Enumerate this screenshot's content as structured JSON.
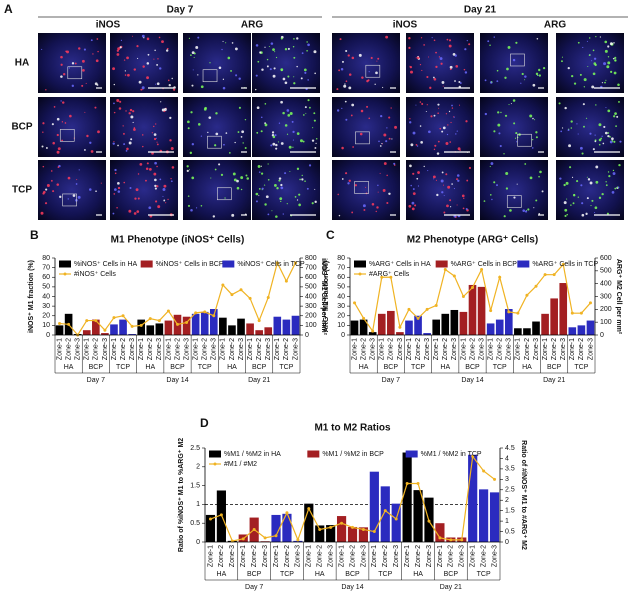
{
  "panel_a": {
    "label": "A",
    "days": [
      "Day 7",
      "Day 21"
    ],
    "stains": [
      "iNOS",
      "ARG",
      "iNOS",
      "ARG"
    ],
    "rows": [
      "HA",
      "BCP",
      "TCP"
    ]
  },
  "chart_data": [
    {
      "type": "bar",
      "panel": "B",
      "title": "M1 Phenotype (iNOS⁺ Cells)",
      "y_label": "iNOS⁺ M1 fraction (%)",
      "y2_label": "iNOS⁺ M1 Cell per mm²",
      "categories": [
        "Zone-1",
        "Zone-2",
        "Zone-3",
        "Zone-1",
        "Zone-2",
        "Zone-3",
        "Zone-1",
        "Zone-2",
        "Zone-3",
        "Zone-1",
        "Zone-2",
        "Zone-3",
        "Zone-1",
        "Zone-2",
        "Zone-3",
        "Zone-1",
        "Zone-2",
        "Zone-3",
        "Zone-1",
        "Zone-2",
        "Zone-3",
        "Zone-1",
        "Zone-2",
        "Zone-3",
        "Zone-1",
        "Zone-2",
        "Zone-3"
      ],
      "groups": [
        "HA",
        "BCP",
        "TCP",
        "HA",
        "BCP",
        "TCP",
        "HA",
        "BCP",
        "TCP"
      ],
      "days": [
        "Day 7",
        "Day 14",
        "Day 21"
      ],
      "series": [
        {
          "name": "%iNOS⁺ Cells in HA",
          "color": "#000000",
          "values": [
            10,
            22,
            1,
            null,
            null,
            null,
            null,
            null,
            null,
            16,
            10,
            12,
            null,
            null,
            null,
            null,
            null,
            null,
            18,
            10,
            17,
            null,
            null,
            null,
            null,
            null,
            null
          ]
        },
        {
          "name": "%iNOS⁺ Cells in BCP",
          "color": "#a31f22",
          "values": [
            null,
            null,
            null,
            5,
            16,
            2,
            null,
            null,
            null,
            null,
            null,
            null,
            15,
            21,
            19,
            null,
            null,
            null,
            null,
            null,
            null,
            12,
            5,
            8,
            null,
            null,
            null
          ]
        },
        {
          "name": "%iNOS⁺ Cells in TCP",
          "color": "#2b2bbf",
          "values": [
            null,
            null,
            null,
            null,
            null,
            null,
            11,
            16,
            1,
            null,
            null,
            null,
            null,
            null,
            null,
            22,
            24,
            27,
            null,
            null,
            null,
            null,
            null,
            null,
            19,
            16,
            20
          ]
        },
        {
          "name": "#iNOS⁺ Cells",
          "color": "#f0b323",
          "axis": "y2",
          "values": [
            120,
            110,
            0,
            150,
            150,
            50,
            180,
            200,
            90,
            100,
            170,
            150,
            250,
            110,
            130,
            230,
            240,
            200,
            520,
            420,
            470,
            380,
            150,
            390,
            750,
            560,
            750
          ]
        }
      ],
      "ylim": [
        0,
        80
      ],
      "yticks": [
        0,
        10,
        20,
        30,
        40,
        50,
        60,
        70,
        80
      ],
      "y2lim": [
        0,
        800
      ],
      "y2ticks": [
        0,
        100,
        200,
        300,
        400,
        500,
        600,
        700,
        800
      ]
    },
    {
      "type": "bar",
      "panel": "C",
      "title": "M2 Phenotype (ARG⁺ Cells)",
      "y_label": "ARG⁺ M2 fraction (%)",
      "y2_label": "ARG⁺ M2 Cell per mm²",
      "categories": [
        "Zone-1",
        "Zone-2",
        "Zone-3",
        "Zone-1",
        "Zone-2",
        "Zone-3",
        "Zone-1",
        "Zone-2",
        "Zone-3",
        "Zone-1",
        "Zone-2",
        "Zone-3",
        "Zone-1",
        "Zone-2",
        "Zone-3",
        "Zone-1",
        "Zone-2",
        "Zone-3",
        "Zone-1",
        "Zone-2",
        "Zone-3",
        "Zone-1",
        "Zone-2",
        "Zone-3",
        "Zone-1",
        "Zone-2",
        "Zone-3"
      ],
      "groups": [
        "HA",
        "BCP",
        "TCP",
        "HA",
        "BCP",
        "TCP",
        "HA",
        "BCP",
        "TCP"
      ],
      "days": [
        "Day 7",
        "Day 14",
        "Day 21"
      ],
      "series": [
        {
          "name": "%ARG⁺ Cells in HA",
          "color": "#000000",
          "values": [
            15,
            16,
            3,
            null,
            null,
            null,
            null,
            null,
            null,
            16,
            22,
            26,
            null,
            null,
            null,
            null,
            null,
            null,
            7,
            7,
            14,
            null,
            null,
            null,
            null,
            null,
            null
          ]
        },
        {
          "name": "%ARG⁺ Cells in BCP",
          "color": "#a31f22",
          "values": [
            null,
            null,
            null,
            22,
            25,
            3,
            null,
            null,
            null,
            null,
            null,
            null,
            24,
            52,
            50,
            null,
            null,
            null,
            null,
            null,
            null,
            22,
            38,
            54,
            null,
            null,
            null
          ]
        },
        {
          "name": "%ARG⁺ Cells in TCP",
          "color": "#2b2bbf",
          "values": [
            null,
            null,
            null,
            null,
            null,
            null,
            15,
            20,
            2,
            null,
            null,
            null,
            null,
            null,
            null,
            12,
            16,
            27,
            null,
            null,
            null,
            null,
            null,
            null,
            8,
            10,
            15
          ]
        },
        {
          "name": "#ARG⁺ Cells",
          "color": "#f0b323",
          "axis": "y2",
          "values": [
            250,
            130,
            30,
            450,
            450,
            60,
            200,
            130,
            200,
            230,
            510,
            460,
            300,
            370,
            510,
            190,
            450,
            180,
            170,
            310,
            380,
            470,
            470,
            550,
            170,
            170,
            250
          ]
        }
      ],
      "ylim": [
        0,
        80
      ],
      "yticks": [
        0,
        10,
        20,
        30,
        40,
        50,
        60,
        70,
        80
      ],
      "y2lim": [
        0,
        600
      ],
      "y2ticks": [
        0,
        100,
        200,
        300,
        400,
        500,
        600
      ]
    },
    {
      "type": "bar",
      "panel": "D",
      "title": "M1 to M2 Ratios",
      "y_label": "Ratio of %iNOS⁺ M1 to %ARG⁺ M2",
      "y2_label": "Ratio of #iNOS⁺ M1 to #ARG⁺ M2",
      "categories": [
        "Zone-1",
        "Zone-2",
        "Zone-3",
        "Zone-1",
        "Zone-2",
        "Zone-3",
        "Zone-1",
        "Zone-2",
        "Zone-3",
        "Zone-1",
        "Zone-2",
        "Zone-3",
        "Zone-1",
        "Zone-2",
        "Zone-3",
        "Zone-1",
        "Zone-2",
        "Zone-3",
        "Zone-1",
        "Zone-2",
        "Zone-3",
        "Zone-1",
        "Zone-2",
        "Zone-3",
        "Zone-1",
        "Zone-2",
        "Zone-3"
      ],
      "groups": [
        "HA",
        "BCP",
        "TCP",
        "HA",
        "BCP",
        "TCP",
        "HA",
        "BCP",
        "TCP"
      ],
      "days": [
        "Day 7",
        "Day 14",
        "Day 21"
      ],
      "series": [
        {
          "name": "%M1 / %M2 in HA",
          "color": "#000000",
          "values": [
            0.72,
            1.37,
            0.03,
            null,
            null,
            null,
            null,
            null,
            null,
            1.02,
            0.44,
            0.45,
            null,
            null,
            null,
            null,
            null,
            null,
            2.38,
            1.38,
            1.18,
            null,
            null,
            null,
            null,
            null,
            null
          ]
        },
        {
          "name": "%M1 / %M2 in BCP",
          "color": "#a31f22",
          "values": [
            null,
            null,
            null,
            0.2,
            0.65,
            0.02,
            null,
            null,
            null,
            null,
            null,
            null,
            0.69,
            0.4,
            0.39,
            null,
            null,
            null,
            null,
            null,
            null,
            0.5,
            0.12,
            0.12,
            null,
            null,
            null
          ]
        },
        {
          "name": "%M1 / %M2 in TCP",
          "color": "#2b2bbf",
          "values": [
            null,
            null,
            null,
            null,
            null,
            null,
            0.72,
            0.75,
            0.03,
            null,
            null,
            null,
            null,
            null,
            null,
            1.87,
            1.48,
            1.02,
            null,
            null,
            null,
            null,
            null,
            null,
            2.32,
            1.4,
            1.32
          ]
        },
        {
          "name": "#M1 / #M2",
          "color": "#f0b323",
          "axis": "y2",
          "values": [
            1.1,
            1.3,
            0.05,
            0.15,
            0.6,
            0.2,
            0.3,
            1.4,
            0.1,
            1.6,
            0.6,
            0.7,
            0.9,
            0.7,
            0.6,
            0.5,
            1.5,
            1.1,
            2.8,
            2.8,
            1.0,
            0.2,
            0.1,
            0.1,
            4.1,
            3.4,
            3.0
          ]
        }
      ],
      "hline": 1,
      "ylim": [
        0,
        2.5
      ],
      "yticks": [
        0,
        0.5,
        1,
        1.5,
        2,
        2.5
      ],
      "y2lim": [
        0,
        4.5
      ],
      "y2ticks": [
        0,
        0.5,
        1,
        1.5,
        2,
        2.5,
        3,
        3.5,
        4,
        4.5
      ]
    }
  ]
}
